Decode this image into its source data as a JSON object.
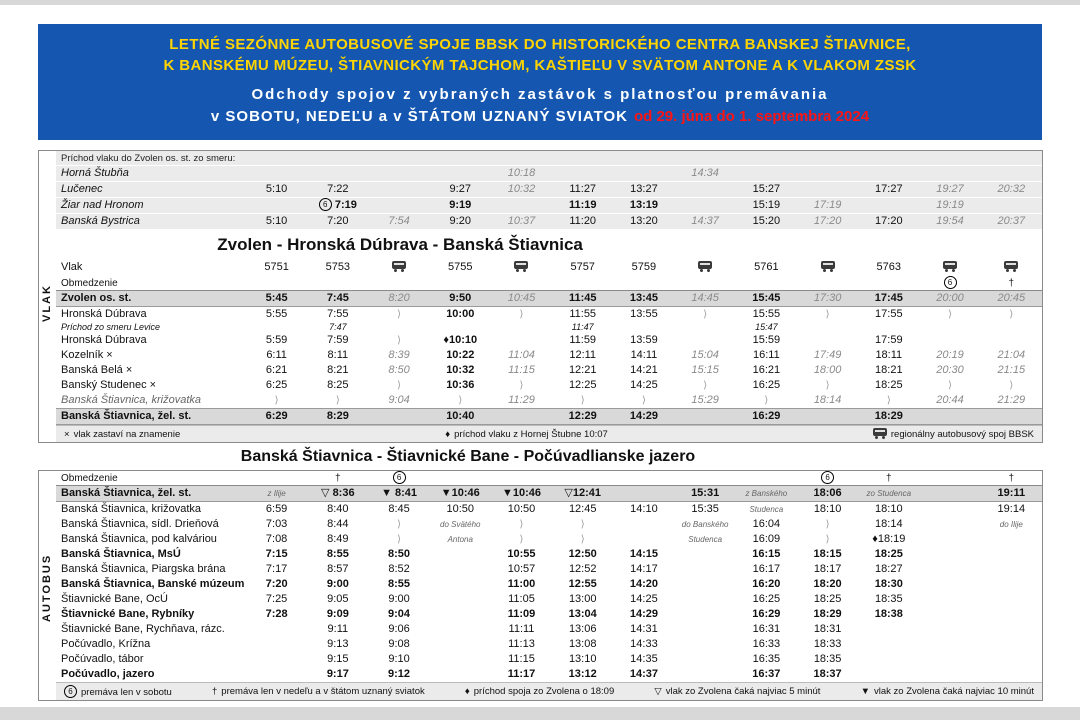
{
  "colors": {
    "banner_bg": "#1557b0",
    "banner_title_yellow": "#ffd400",
    "validity_red": "#ff1313",
    "highlight_row_bg": "#d9d9d9",
    "block_bg": "#ebebeb"
  },
  "banner": {
    "line1": "LETNÉ SEZÓNNE AUTOBUSOVÉ SPOJE BBSK DO HISTORICKÉHO CENTRA BANSKEJ ŠTIAVNICE,",
    "line2": "K BANSKÉMU MÚZEU, ŠTIAVNICKÝM TAJCHOM, KAŠTIEĽU V SVÄTOM ANTONE A K VLAKOM ZSSK",
    "line3": "Odchody spojov z vybraných zastávok s platnosťou premávania",
    "line4": "v SOBOTU, NEDEĽU a v ŠTÁTOM UZNANÝ SVIATOK",
    "validity": "od 29. júna do 1. septembra 2024"
  },
  "train_section": {
    "side_label": "VLAK",
    "arrivals_header": "Príchod vlaku do Zvolen os. st. zo smeru:",
    "arrival_rows": [
      {
        "label": "Horná Štubňa",
        "flags": "arr",
        "cells": [
          "",
          "",
          "",
          "",
          [
            "10:18",
            "g"
          ],
          "",
          "",
          [
            "14:34",
            "g"
          ],
          "",
          "",
          "",
          "",
          ""
        ]
      },
      {
        "label": "Lučenec",
        "flags": "arr",
        "cells": [
          "5:10",
          "7:22",
          "",
          "9:27",
          [
            "10:32",
            "g"
          ],
          "11:27",
          "13:27",
          "",
          "15:27",
          "",
          "17:27",
          [
            "19:27",
            "g"
          ],
          [
            "20:32",
            "g"
          ]
        ]
      },
      {
        "label": "Žiar nad Hronom",
        "flags": "arr",
        "cells": [
          "",
          [
            "[6] 7:19",
            "b"
          ],
          "",
          [
            "9:19",
            "b"
          ],
          "",
          [
            "11:19",
            "b"
          ],
          [
            "13:19",
            "b"
          ],
          "",
          "15:19",
          [
            "17:19",
            "g"
          ],
          "",
          [
            "19:19",
            "g"
          ],
          ""
        ]
      },
      {
        "label": "Banská Bystrica",
        "flags": "arr",
        "cells": [
          "5:10",
          "7:20",
          [
            "7:54",
            "g"
          ],
          "9:20",
          [
            "10:37",
            "g"
          ],
          "11:20",
          "13:20",
          [
            "14:37",
            "g"
          ],
          "15:20",
          [
            "17:20",
            "g"
          ],
          "17:20",
          [
            "19:54",
            "g"
          ],
          [
            "20:37",
            "g"
          ]
        ]
      }
    ],
    "title": "Zvolen - Hronská Dúbrava - Banská Štiavnica",
    "rows": [
      {
        "label": "Vlak",
        "flags": "head",
        "cells": [
          "5751",
          "5753",
          "[bus]",
          "5755",
          "[bus]",
          "5757",
          "5759",
          "[bus]",
          "5761",
          "[bus]",
          "5763",
          "[bus]",
          "[bus]"
        ]
      },
      {
        "label": "Obmedzenie",
        "flags": "obm",
        "cells": [
          "",
          "",
          "",
          "",
          "",
          "",
          "",
          "",
          "",
          "",
          "",
          [
            "[6]",
            "sym"
          ],
          [
            "†",
            "sym"
          ]
        ]
      },
      {
        "label": "Zvolen os. st.",
        "flags": "hl",
        "cells": [
          "5:45",
          "7:45",
          [
            "8:20",
            "g"
          ],
          "9:50",
          [
            "10:45",
            "g"
          ],
          "11:45",
          "13:45",
          [
            "14:45",
            "g"
          ],
          "15:45",
          [
            "17:30",
            "g"
          ],
          "17:45",
          [
            "20:00",
            "g"
          ],
          [
            "20:45",
            "g"
          ]
        ]
      },
      {
        "label": "Hronská Dúbrava",
        "flags": "",
        "cells": [
          "5:55",
          "7:55",
          [
            "⟩",
            "p"
          ],
          [
            "10:00",
            "b"
          ],
          [
            "⟩",
            "p"
          ],
          "11:55",
          "13:55",
          [
            "⟩",
            "p"
          ],
          "15:55",
          [
            "⟩",
            "p"
          ],
          "17:55",
          [
            "⟩",
            "p"
          ],
          [
            "⟩",
            "p"
          ]
        ]
      },
      {
        "label": "Príchod zo smeru Levice",
        "flags": "note",
        "cells": [
          "",
          "7:47",
          "",
          "",
          "",
          "11:47",
          "",
          "",
          "15:47",
          "",
          "",
          "",
          ""
        ]
      },
      {
        "label": "Hronská Dúbrava",
        "flags": "",
        "cells": [
          "5:59",
          "7:59",
          [
            "⟩",
            "p"
          ],
          [
            "♦10:10",
            "b"
          ],
          "",
          "11:59",
          "13:59",
          "",
          "15:59",
          "",
          "17:59",
          "",
          ""
        ]
      },
      {
        "label": "Kozelník ×",
        "flags": "",
        "cells": [
          "6:11",
          "8:11",
          [
            "8:39",
            "g"
          ],
          [
            "10:22",
            "b"
          ],
          [
            "11:04",
            "g"
          ],
          "12:11",
          "14:11",
          [
            "15:04",
            "g"
          ],
          "16:11",
          [
            "17:49",
            "g"
          ],
          "18:11",
          [
            "20:19",
            "g"
          ],
          [
            "21:04",
            "g"
          ]
        ]
      },
      {
        "label": "Banská Belá ×",
        "flags": "",
        "cells": [
          "6:21",
          "8:21",
          [
            "8:50",
            "g"
          ],
          [
            "10:32",
            "b"
          ],
          [
            "11:15",
            "g"
          ],
          "12:21",
          "14:21",
          [
            "15:15",
            "g"
          ],
          "16:21",
          [
            "18:00",
            "g"
          ],
          "18:21",
          [
            "20:30",
            "g"
          ],
          [
            "21:15",
            "g"
          ]
        ]
      },
      {
        "label": "Banský Studenec ×",
        "flags": "",
        "cells": [
          "6:25",
          "8:25",
          [
            "⟩",
            "p"
          ],
          [
            "10:36",
            "b"
          ],
          [
            "⟩",
            "p"
          ],
          "12:25",
          "14:25",
          [
            "⟩",
            "p"
          ],
          "16:25",
          [
            "⟩",
            "p"
          ],
          "18:25",
          [
            "⟩",
            "p"
          ],
          [
            "⟩",
            "p"
          ]
        ]
      },
      {
        "label": "Banská Štiavnica, križovatka",
        "flags": "it",
        "cells": [
          [
            "⟩",
            "p"
          ],
          [
            "⟩",
            "p"
          ],
          [
            "9:04",
            "g"
          ],
          [
            "⟩",
            "p"
          ],
          [
            "11:29",
            "g"
          ],
          [
            "⟩",
            "p"
          ],
          [
            "⟩",
            "p"
          ],
          [
            "15:29",
            "g"
          ],
          [
            "⟩",
            "p"
          ],
          [
            "18:14",
            "g"
          ],
          [
            "⟩",
            "p"
          ],
          [
            "20:44",
            "g"
          ],
          [
            "21:29",
            "g"
          ]
        ]
      },
      {
        "label": "Banská Štiavnica, žel. st.",
        "flags": "hl",
        "cells": [
          "6:29",
          "8:29",
          "",
          [
            "10:40",
            "b"
          ],
          "",
          "12:29",
          "14:29",
          "",
          "16:29",
          "",
          "18:29",
          "",
          ""
        ]
      }
    ],
    "legend": [
      {
        "sym": "×",
        "text": "vlak zastaví na znamenie"
      },
      {
        "sym": "♦",
        "text": "príchod vlaku z Hornej Štubne 10:07"
      },
      {
        "sym": "[bus]",
        "text": "regionálny autobusový spoj BBSK"
      }
    ]
  },
  "bus_section": {
    "side_label": "AUTOBUS",
    "title": "Banská Štiavnica - Štiavnické Bane - Počúvadlianske jazero",
    "rows": [
      {
        "label": "Obmedzenie",
        "flags": "obm",
        "cells": [
          "",
          [
            "†",
            "sym"
          ],
          [
            "[6]",
            "sym"
          ],
          "",
          "",
          "",
          "",
          "",
          "",
          [
            "[6]",
            "sym"
          ],
          [
            "†",
            "sym"
          ],
          "",
          [
            "†",
            "sym"
          ]
        ]
      },
      {
        "label": "Banská Štiavnica, žel. st.",
        "flags": "hl",
        "cells": [
          [
            "z Ilije",
            "sm"
          ],
          "▽ 8:36",
          "▼ 8:41",
          "▼10:46",
          "▼10:46",
          "▽12:41",
          "",
          "15:31",
          [
            "z Banského",
            "sm"
          ],
          "18:06",
          [
            "zo Studenca",
            "sm"
          ],
          "",
          "19:11"
        ]
      },
      {
        "label": "Banská Štiavnica, križovatka",
        "flags": "",
        "cells": [
          "6:59",
          "8:40",
          "8:45",
          "10:50",
          "10:50",
          "12:45",
          "14:10",
          "15:35",
          [
            "Studenca",
            "sm"
          ],
          "18:10",
          "18:10",
          "",
          "19:14"
        ]
      },
      {
        "label": "Banská Štiavnica, sídl. Drieňová",
        "flags": "",
        "cells": [
          "7:03",
          "8:44",
          [
            "⟩",
            "p"
          ],
          [
            "do Svätého",
            "sm"
          ],
          [
            "⟩",
            "p"
          ],
          [
            "⟩",
            "p"
          ],
          "",
          [
            "do Banského",
            "sm"
          ],
          "16:04",
          [
            "⟩",
            "p"
          ],
          "18:14",
          "",
          [
            "do Ilije",
            "sm"
          ]
        ]
      },
      {
        "label": "Banská Štiavnica, pod kalváriou",
        "flags": "",
        "cells": [
          "7:08",
          "8:49",
          [
            "⟩",
            "p"
          ],
          [
            "Antona",
            "sm"
          ],
          [
            "⟩",
            "p"
          ],
          [
            "⟩",
            "p"
          ],
          "",
          [
            "Studenca",
            "sm"
          ],
          "16:09",
          [
            "⟩",
            "p"
          ],
          "♦18:19",
          "",
          ""
        ]
      },
      {
        "label": "Banská Štiavnica, MsÚ",
        "flags": "bold",
        "cells": [
          "7:15",
          "8:55",
          "8:50",
          "",
          "10:55",
          "12:50",
          "14:15",
          "",
          "16:15",
          "18:15",
          "18:25",
          "",
          ""
        ]
      },
      {
        "label": "Banská Štiavnica, Piargska brána",
        "flags": "",
        "cells": [
          "7:17",
          "8:57",
          "8:52",
          "",
          "10:57",
          "12:52",
          "14:17",
          "",
          "16:17",
          "18:17",
          "18:27",
          "",
          ""
        ]
      },
      {
        "label": "Banská Štiavnica, Banské múzeum",
        "flags": "bold",
        "cells": [
          "7:20",
          "9:00",
          "8:55",
          "",
          "11:00",
          "12:55",
          "14:20",
          "",
          "16:20",
          "18:20",
          "18:30",
          "",
          ""
        ]
      },
      {
        "label": "Štiavnické Bane, OcÚ",
        "flags": "",
        "cells": [
          "7:25",
          "9:05",
          "9:00",
          "",
          "11:05",
          "13:00",
          "14:25",
          "",
          "16:25",
          "18:25",
          "18:35",
          "",
          ""
        ]
      },
      {
        "label": "Štiavnické Bane, Rybníky",
        "flags": "bold",
        "cells": [
          "7:28",
          "9:09",
          "9:04",
          "",
          "11:09",
          "13:04",
          "14:29",
          "",
          "16:29",
          "18:29",
          "18:38",
          "",
          ""
        ]
      },
      {
        "label": "Štiavnické Bane, Rychňava, rázc.",
        "flags": "",
        "cells": [
          "",
          "9:11",
          "9:06",
          "",
          "11:11",
          "13:06",
          "14:31",
          "",
          "16:31",
          "18:31",
          "",
          "",
          ""
        ]
      },
      {
        "label": "Počúvadlo, Krížna",
        "flags": "",
        "cells": [
          "",
          "9:13",
          "9:08",
          "",
          "11:13",
          "13:08",
          "14:33",
          "",
          "16:33",
          "18:33",
          "",
          "",
          ""
        ]
      },
      {
        "label": "Počúvadlo, tábor",
        "flags": "",
        "cells": [
          "",
          "9:15",
          "9:10",
          "",
          "11:15",
          "13:10",
          "14:35",
          "",
          "16:35",
          "18:35",
          "",
          "",
          ""
        ]
      },
      {
        "label": "Počúvadlo, jazero",
        "flags": "bold",
        "cells": [
          "",
          "9:17",
          "9:12",
          "",
          "11:17",
          "13:12",
          "14:37",
          "",
          "16:37",
          "18:37",
          "",
          "",
          ""
        ]
      }
    ],
    "legend": [
      {
        "sym": "[6]",
        "text": "premáva len v sobotu"
      },
      {
        "sym": "†",
        "text": "premáva len v nedeľu a v štátom uznaný sviatok"
      },
      {
        "sym": "♦",
        "text": "príchod spoja zo Zvolena o 18:09"
      },
      {
        "sym": "▽",
        "text": "vlak zo Zvolena čaká najviac 5 minút"
      },
      {
        "sym": "▼",
        "text": "vlak zo Zvolena čaká najviac 10 minút"
      }
    ]
  }
}
